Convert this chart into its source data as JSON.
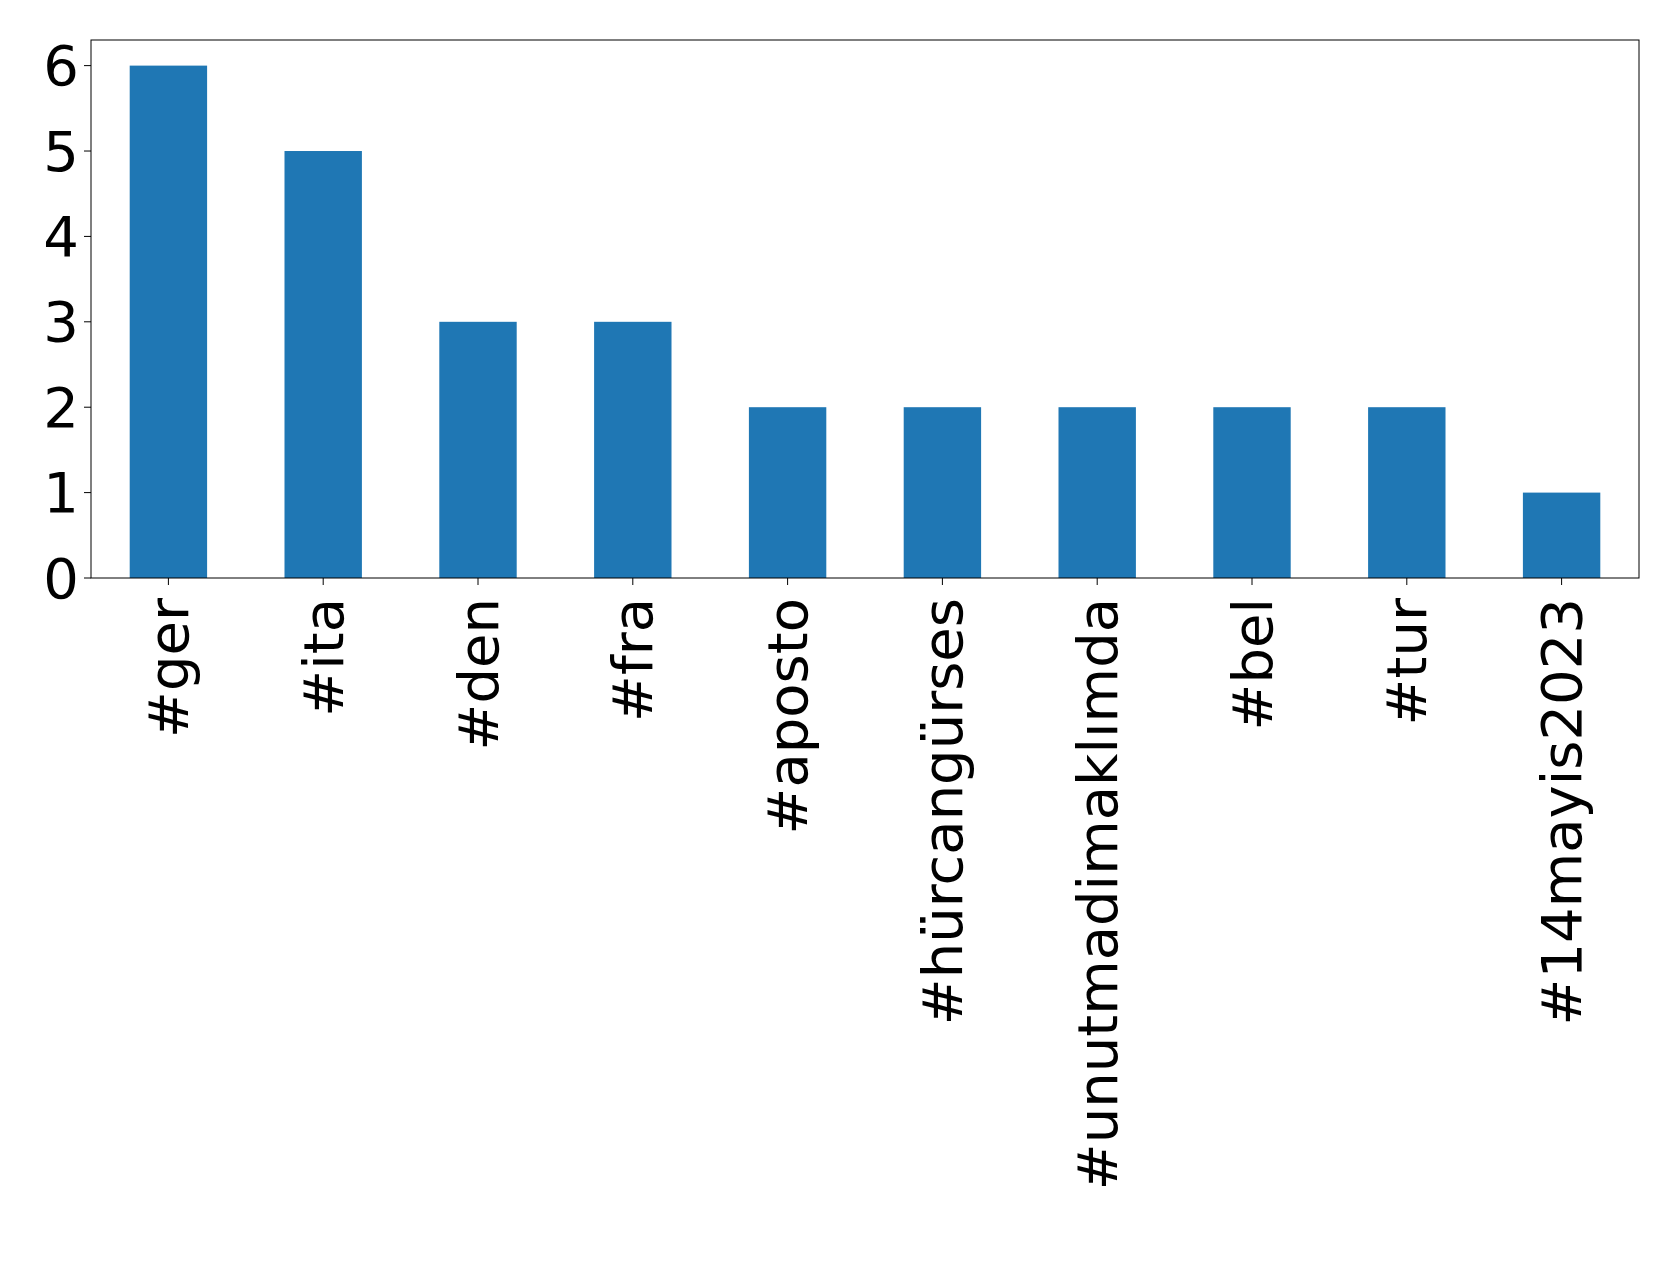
{
  "chart_data": {
    "type": "bar",
    "categories": [
      "#ger",
      "#ita",
      "#den",
      "#fra",
      "#aposto",
      "#hürcangürses",
      "#unutmadimaklımda",
      "#bel",
      "#tur",
      "#14mayis2023"
    ],
    "values": [
      6,
      5,
      3,
      3,
      2,
      2,
      2,
      2,
      2,
      1
    ],
    "color": "#1f77b4",
    "ylim": [
      0,
      6.3
    ],
    "yticks": [
      0,
      1,
      2,
      3,
      4,
      5,
      6
    ]
  }
}
